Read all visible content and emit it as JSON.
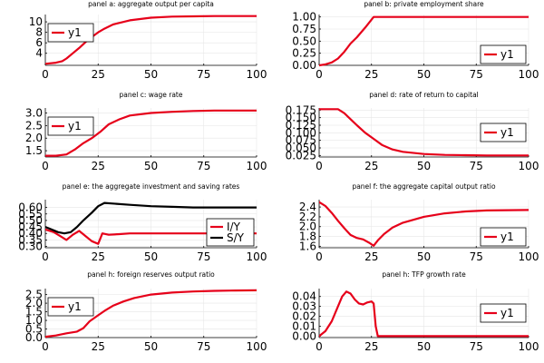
{
  "chart_data": [
    {
      "type": "line",
      "title": "panel a: aggregate output per capita",
      "xlim": [
        0,
        100
      ],
      "ylim": [
        1.7,
        11.4
      ],
      "xticks": [
        0,
        25,
        50,
        75,
        100
      ],
      "yticks": [
        4,
        6,
        8,
        10
      ],
      "ytick_labels": [
        "4",
        "6",
        "8",
        "10"
      ],
      "grid": true,
      "legend_position": "top-left",
      "series": [
        {
          "name": "y1",
          "color": "#e6001a",
          "x": [
            0,
            5,
            8,
            10,
            13,
            16,
            20,
            25,
            28,
            32,
            40,
            50,
            60,
            70,
            80,
            100
          ],
          "y": [
            2.0,
            2.2,
            2.5,
            3.0,
            4.0,
            5.0,
            6.5,
            8.0,
            8.7,
            9.5,
            10.3,
            10.8,
            11.0,
            11.05,
            11.1,
            11.1
          ]
        }
      ]
    },
    {
      "type": "line",
      "title": "panel b: private employment share",
      "xlim": [
        0,
        100
      ],
      "ylim": [
        0,
        1.05
      ],
      "xticks": [
        0,
        25,
        50,
        75,
        100
      ],
      "yticks": [
        0,
        0.25,
        0.5,
        0.75,
        1.0
      ],
      "ytick_labels": [
        "0.00",
        "0.25",
        "0.50",
        "0.75",
        "1.00"
      ],
      "grid": true,
      "legend_position": "bottom-right",
      "series": [
        {
          "name": "y1",
          "color": "#e6001a",
          "x": [
            0,
            3,
            6,
            9,
            12,
            15,
            18,
            22,
            26,
            30,
            50,
            75,
            100
          ],
          "y": [
            0.0,
            0.02,
            0.06,
            0.14,
            0.28,
            0.45,
            0.58,
            0.78,
            1.0,
            1.0,
            1.0,
            1.0,
            1.0
          ]
        }
      ]
    },
    {
      "type": "line",
      "title": "panel c: wage rate",
      "xlim": [
        0,
        100
      ],
      "ylim": [
        1.25,
        3.2
      ],
      "xticks": [
        0,
        25,
        50,
        75,
        100
      ],
      "yticks": [
        1.5,
        2.0,
        2.5,
        3.0
      ],
      "ytick_labels": [
        "1.5",
        "2.0",
        "2.5",
        "3.0"
      ],
      "grid": true,
      "legend_position": "top-left",
      "series": [
        {
          "name": "y1",
          "color": "#e6001a",
          "x": [
            0,
            5,
            10,
            14,
            18,
            22,
            26,
            30,
            35,
            40,
            50,
            60,
            70,
            80,
            100
          ],
          "y": [
            1.3,
            1.3,
            1.35,
            1.55,
            1.8,
            2.0,
            2.25,
            2.55,
            2.75,
            2.9,
            3.0,
            3.05,
            3.08,
            3.1,
            3.1
          ]
        }
      ]
    },
    {
      "type": "line",
      "title": "panel d: rate of return to capital",
      "xlim": [
        0,
        100
      ],
      "ylim": [
        0.02,
        0.182
      ],
      "xticks": [
        0,
        25,
        50,
        75,
        100
      ],
      "yticks": [
        0.025,
        0.05,
        0.075,
        0.1,
        0.125,
        0.15,
        0.175
      ],
      "ytick_labels": [
        "0.025",
        "0.050",
        "0.075",
        "0.100",
        "0.125",
        "0.150",
        "0.175"
      ],
      "grid": true,
      "legend_position": "right",
      "series": [
        {
          "name": "y1",
          "color": "#e6001a",
          "x": [
            0,
            5,
            9,
            12,
            15,
            18,
            22,
            26,
            30,
            35,
            40,
            50,
            60,
            70,
            80,
            100
          ],
          "y": [
            0.178,
            0.178,
            0.178,
            0.165,
            0.145,
            0.125,
            0.1,
            0.08,
            0.06,
            0.045,
            0.037,
            0.03,
            0.027,
            0.026,
            0.025,
            0.025
          ]
        }
      ]
    },
    {
      "type": "line",
      "title": "panel e: the aggregate investment and saving rates",
      "xlim": [
        0,
        100
      ],
      "ylim": [
        0.29,
        0.66
      ],
      "xticks": [
        0,
        25,
        50,
        75,
        100
      ],
      "yticks": [
        0.3,
        0.35,
        0.4,
        0.45,
        0.5,
        0.55,
        0.6
      ],
      "ytick_labels": [
        "0.30",
        "0.35",
        "0.40",
        "0.45",
        "0.50",
        "0.55",
        "0.60"
      ],
      "grid": true,
      "legend_position": "bottom-right",
      "series": [
        {
          "name": "I/Y",
          "color": "#e6001a",
          "x": [
            0,
            4,
            7,
            10,
            13,
            16,
            19,
            22,
            25,
            27,
            30,
            35,
            40,
            50,
            60,
            70,
            80,
            90,
            100
          ],
          "y": [
            0.43,
            0.41,
            0.38,
            0.35,
            0.39,
            0.42,
            0.38,
            0.34,
            0.32,
            0.4,
            0.39,
            0.395,
            0.4,
            0.4,
            0.4,
            0.4,
            0.4,
            0.4,
            0.4
          ]
        },
        {
          "name": "S/Y",
          "color": "#000000",
          "x": [
            0,
            3,
            6,
            9,
            12,
            15,
            18,
            22,
            25,
            28,
            32,
            40,
            50,
            60,
            70,
            80,
            100
          ],
          "y": [
            0.45,
            0.43,
            0.41,
            0.4,
            0.41,
            0.45,
            0.5,
            0.56,
            0.61,
            0.635,
            0.63,
            0.62,
            0.61,
            0.605,
            0.6,
            0.6,
            0.6
          ]
        }
      ]
    },
    {
      "type": "line",
      "title": "panel f: the aggregate capital output ratio",
      "xlim": [
        0,
        100
      ],
      "ylim": [
        1.57,
        2.55
      ],
      "xticks": [
        0,
        25,
        50,
        75,
        100
      ],
      "yticks": [
        1.6,
        1.8,
        2.0,
        2.2,
        2.4
      ],
      "ytick_labels": [
        "1.6",
        "1.8",
        "2.0",
        "2.2",
        "2.4"
      ],
      "grid": true,
      "legend_position": "bottom-right",
      "series": [
        {
          "name": "y1",
          "color": "#e6001a",
          "x": [
            0,
            3,
            6,
            9,
            12,
            15,
            18,
            21,
            24,
            26,
            28,
            31,
            35,
            40,
            50,
            60,
            70,
            80,
            100
          ],
          "y": [
            2.5,
            2.42,
            2.28,
            2.12,
            1.97,
            1.83,
            1.77,
            1.74,
            1.67,
            1.61,
            1.72,
            1.85,
            1.98,
            2.08,
            2.2,
            2.27,
            2.31,
            2.33,
            2.34
          ]
        }
      ]
    },
    {
      "type": "line",
      "title": "panel h: foreign reserves output ratio",
      "xlim": [
        0,
        100
      ],
      "ylim": [
        0,
        2.85
      ],
      "xticks": [
        0,
        25,
        50,
        75,
        100
      ],
      "yticks": [
        0,
        0.5,
        1.0,
        1.5,
        2.0,
        2.5
      ],
      "ytick_labels": [
        "0.0",
        "0.5",
        "1.0",
        "1.5",
        "2.0",
        "2.5"
      ],
      "grid": true,
      "legend_position": "top-left",
      "series": [
        {
          "name": "y1",
          "color": "#e6001a",
          "x": [
            0,
            5,
            10,
            15,
            18,
            21,
            25,
            28,
            32,
            37,
            42,
            50,
            60,
            70,
            80,
            90,
            100
          ],
          "y": [
            0.05,
            0.12,
            0.25,
            0.35,
            0.55,
            0.95,
            1.3,
            1.55,
            1.85,
            2.1,
            2.3,
            2.5,
            2.62,
            2.68,
            2.72,
            2.74,
            2.75
          ]
        }
      ]
    },
    {
      "type": "line",
      "title": "panel h: TFP growth rate",
      "xlim": [
        0,
        100
      ],
      "ylim": [
        -0.0015,
        0.048
      ],
      "xticks": [
        0,
        25,
        50,
        75,
        100
      ],
      "yticks": [
        0,
        0.01,
        0.02,
        0.03,
        0.04
      ],
      "ytick_labels": [
        "0.00",
        "0.01",
        "0.02",
        "0.03",
        "0.04"
      ],
      "grid": true,
      "legend_position": "right",
      "series": [
        {
          "name": "y1",
          "color": "#e6001a",
          "x": [
            0,
            3,
            6,
            9,
            11,
            13,
            15,
            17,
            19,
            21,
            23,
            25,
            26,
            27,
            28,
            30,
            50,
            75,
            100
          ],
          "y": [
            0.0,
            0.005,
            0.015,
            0.03,
            0.04,
            0.045,
            0.043,
            0.037,
            0.033,
            0.032,
            0.034,
            0.035,
            0.033,
            0.01,
            0.0,
            0.0,
            0.0,
            0.0,
            0.0
          ]
        }
      ]
    }
  ]
}
